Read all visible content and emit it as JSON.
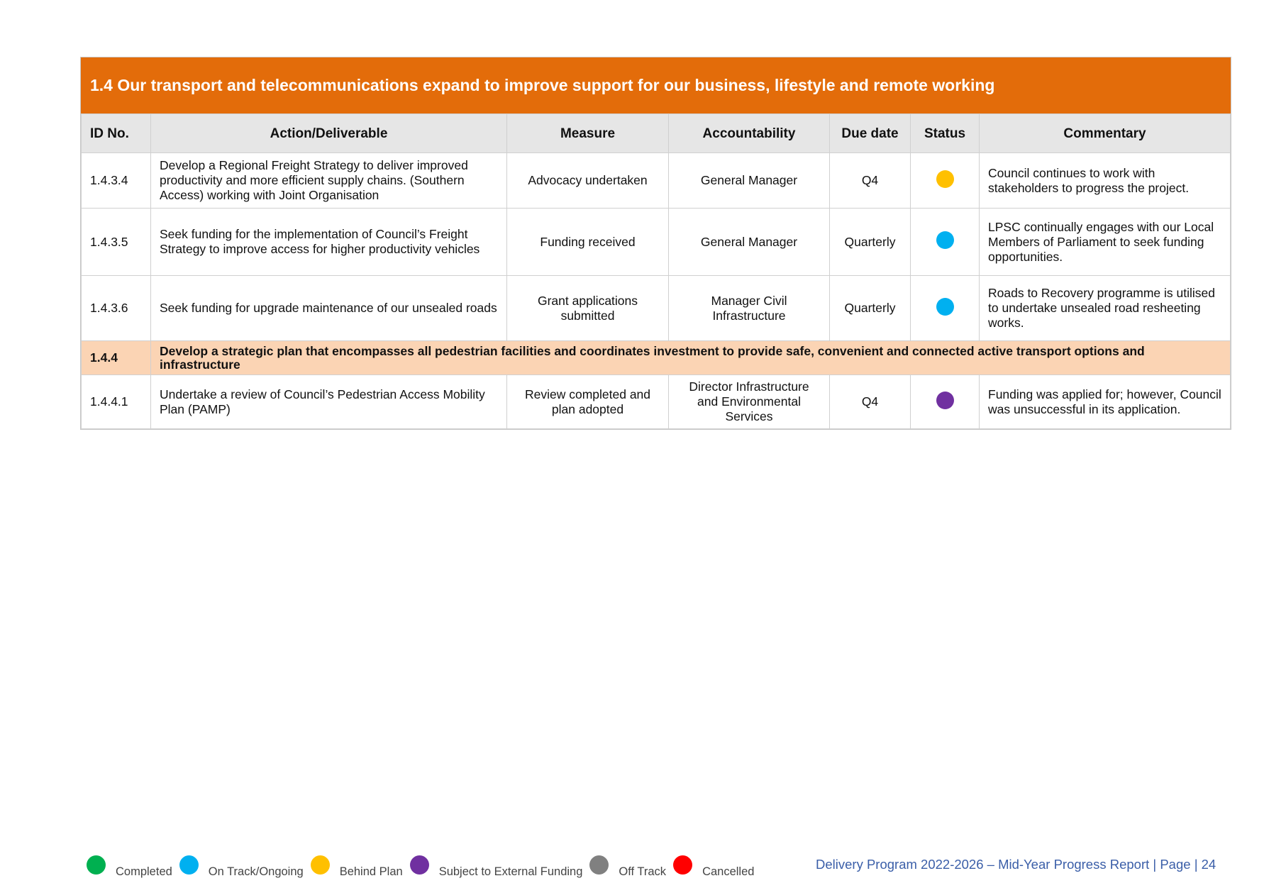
{
  "section_title": "1.4 Our transport and telecommunications expand to improve support for our business, lifestyle and remote working",
  "columns": [
    "ID No.",
    "Action/Deliverable",
    "Measure",
    "Accountability",
    "Due date",
    "Status",
    "Commentary"
  ],
  "rows": [
    {
      "id": "1.4.3.4",
      "action": "Develop a Regional Freight Strategy to deliver improved productivity and more efficient supply chains. (Southern Access) working with Joint Organisation",
      "measure": "Advocacy undertaken",
      "accountability": "General Manager",
      "due": "Q4",
      "status": "Behind Plan",
      "status_color": "#ffc000",
      "commentary": "Council continues to work with stakeholders to progress the project."
    },
    {
      "id": "1.4.3.5",
      "action": "Seek funding for the implementation of Council’s Freight Strategy to improve access for higher productivity vehicles",
      "measure": "Funding received",
      "accountability": "General Manager",
      "due": "Quarterly",
      "status": "On Track/Ongoing",
      "status_color": "#00b0f0",
      "commentary": "LPSC continually engages with our Local Members of Parliament to seek funding opportunities."
    },
    {
      "id": "1.4.3.6",
      "action": "Seek funding for upgrade maintenance of our unsealed roads",
      "measure": "Grant applications submitted",
      "accountability": "Manager Civil Infrastructure",
      "due": "Quarterly",
      "status": "On Track/Ongoing",
      "status_color": "#00b0f0",
      "commentary": "Roads to Recovery programme is utilised to undertake unsealed road resheeting works."
    }
  ],
  "subheading": {
    "id": "1.4.4",
    "text": "Develop a strategic plan that encompasses all pedestrian facilities and coordinates investment to provide safe, convenient and connected active transport options and infrastructure"
  },
  "rows2": [
    {
      "id": "1.4.4.1",
      "action": "Undertake a review of Council’s Pedestrian Access Mobility Plan (PAMP)",
      "measure": "Review completed and plan adopted",
      "accountability": "Director Infrastructure and Environmental Services",
      "due": "Q4",
      "status": "Subject to External Funding",
      "status_color": "#7030a0",
      "commentary": "Funding was applied for; however, Council was unsuccessful in its application."
    }
  ],
  "legend": [
    {
      "label": "Completed",
      "color": "#00b050"
    },
    {
      "label": "On Track/Ongoing",
      "color": "#00b0f0"
    },
    {
      "label": "Behind Plan",
      "color": "#ffc000"
    },
    {
      "label": "Subject to External Funding",
      "color": "#7030a0"
    },
    {
      "label": "Off Track",
      "color": "#808080"
    },
    {
      "label": "Cancelled",
      "color": "#ff0000"
    }
  ],
  "footer": "Delivery Program 2022-2026 – Mid-Year Progress Report | Page | 24",
  "accent_color": "#e36c0a"
}
